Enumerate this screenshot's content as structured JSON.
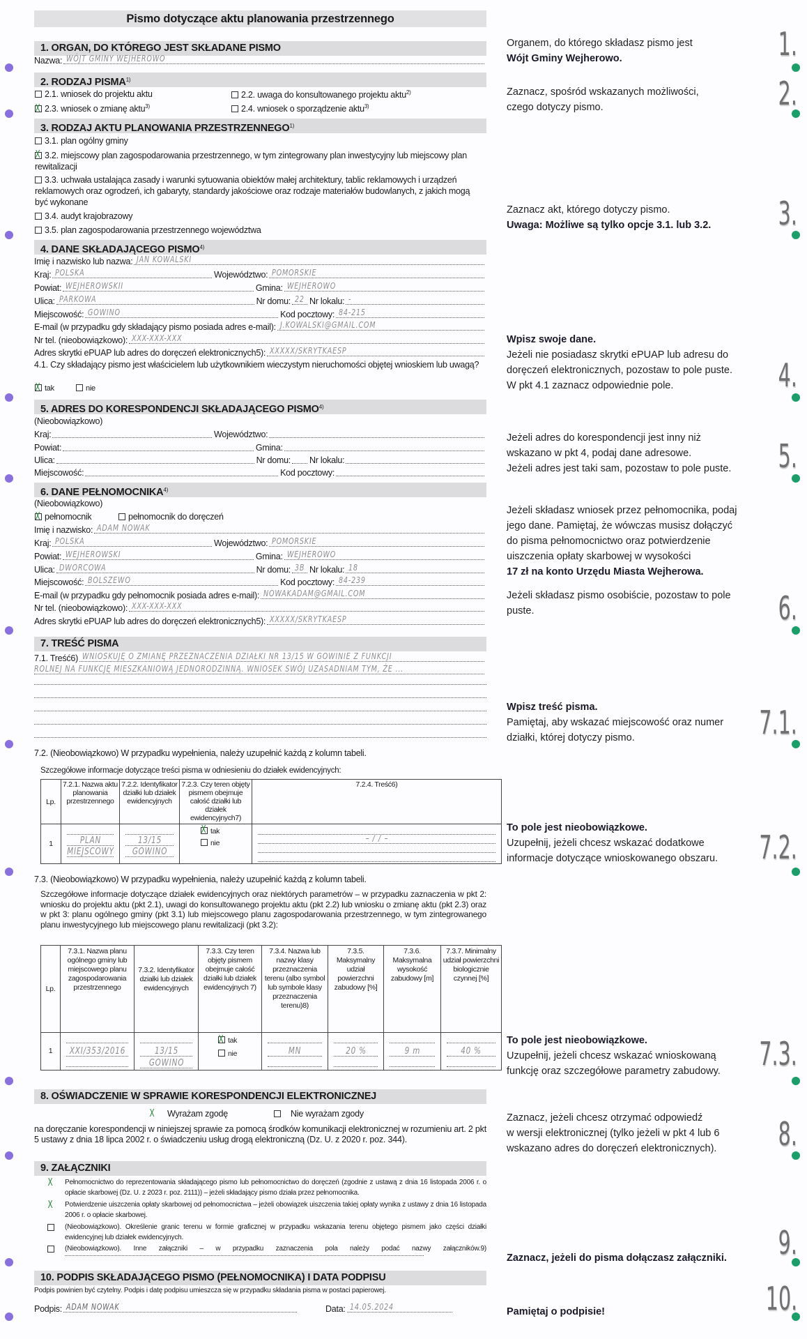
{
  "title": "Pismo dotyczące aktu planowania przestrzennego",
  "colors": {
    "accent_left": "#8a6fe0",
    "accent_right": "#1a9e6a",
    "header_bg": "#dcdbdd",
    "check": "#2e8b3e"
  },
  "sec1": {
    "header": "1. ORGAN, DO KTÓREGO JEST SKŁADANE PISMO",
    "rows": [
      [
        {
          "label": "Nazwa:",
          "value": "WÓJT GMINY WEJHEROWO"
        }
      ]
    ]
  },
  "sec2": {
    "header": "2. RODZAJ PISMA",
    "sup": "1)",
    "options": [
      {
        "label": "2.1. wniosek do projektu aktu",
        "sup": "",
        "checked": "false"
      },
      {
        "label": "2.2. uwaga do konsultowanego projektu aktu",
        "sup": "2)",
        "checked": "false"
      },
      {
        "label": "2.3. wniosek o zmianę aktu",
        "sup": "3)",
        "checked": "true"
      },
      {
        "label": "2.4. wniosek o sporządzenie aktu",
        "sup": "3)",
        "checked": "false"
      }
    ]
  },
  "sec3": {
    "header": "3. RODZAJ AKTU PLANOWANIA PRZESTRZENNEGO",
    "sup": "1)",
    "options": [
      {
        "label": "3.1. plan ogólny gminy",
        "checked": "false"
      },
      {
        "label": "3.2. miejscowy plan zagospodarowania przestrzennego, w tym zintegrowany plan inwestycyjny lub miejscowy plan rewitalizacji",
        "checked": "true"
      },
      {
        "label": "3.3. uchwała ustalająca zasady i warunki sytuowania obiektów małej architektury, tablic reklamowych i urządzeń reklamowych oraz ogrodzeń, ich gabaryty, standardy jakościowe oraz rodzaje materiałów budowlanych, z jakich mogą być wykonane",
        "checked": "false"
      },
      {
        "label": "3.4. audyt krajobrazowy",
        "checked": "false"
      },
      {
        "label": "3.5. plan zagospodarowania przestrzennego województwa",
        "checked": "false"
      }
    ]
  },
  "sec4": {
    "header": "4. DANE SKŁADAJĄCEGO PISMO",
    "sup": "4)",
    "rows": [
      [
        {
          "label": "Imię i nazwisko lub nazwa:",
          "value": "JAN KOWALSKI"
        }
      ],
      [
        {
          "label": "Kraj:",
          "value": "POLSKA"
        },
        {
          "label": "Województwo:",
          "value": "POMORSKIE"
        }
      ],
      [
        {
          "label": "Powiat:",
          "value": "WEJHEROWSKII"
        },
        {
          "label": "Gmina:",
          "value": "WEJHEROWO"
        }
      ],
      [
        {
          "label": "Ulica:",
          "value": "PARKOWA"
        },
        {
          "label": "Nr domu:",
          "value": "22"
        },
        {
          "label": "Nr lokalu:",
          "value": "-"
        }
      ],
      [
        {
          "label": "Miejscowość:",
          "value": "GOWINO"
        },
        {
          "label": "Kod pocztowy:",
          "value": "84-215"
        }
      ],
      [
        {
          "label": "E-mail (w przypadku gdy składający pismo posiada adres e-mail):",
          "value": "J.KOWALSKI@GMAIL.COM"
        }
      ],
      [
        {
          "label": "Nr tel. (nieobowiązkowo):",
          "value": "XXX-XXX-XXX"
        }
      ],
      [
        {
          "label": "Adres skrytki ePUAP lub adres do doręczeń elektronicznych5):",
          "value": "XXXXX/SKRYTKAESP"
        }
      ]
    ],
    "q41": "4.1. Czy składający pismo jest właścicielem lub użytkownikiem wieczystym nieruchomości objętej wnioskiem lub uwagą?",
    "q41_options": [
      {
        "label": "tak",
        "checked": "true"
      },
      {
        "label": "nie",
        "checked": "false"
      }
    ]
  },
  "sec5": {
    "header": "5. ADRES DO KORESPONDENCJI SKŁADAJĄCEGO PISMO",
    "sup": "4)",
    "optional": "(Nieobowiązkowo)",
    "rows": [
      [
        {
          "label": "Kraj:",
          "value": ""
        },
        {
          "label": "Województwo:",
          "value": ""
        }
      ],
      [
        {
          "label": "Powiat:",
          "value": ""
        },
        {
          "label": "Gmina:",
          "value": ""
        }
      ],
      [
        {
          "label": "Ulica:",
          "value": ""
        },
        {
          "label": "Nr domu:",
          "value": ""
        },
        {
          "label": "Nr lokalu:",
          "value": ""
        }
      ],
      [
        {
          "label": "Miejscowość:",
          "value": ""
        },
        {
          "label": "Kod pocztowy:",
          "value": ""
        }
      ]
    ]
  },
  "sec6": {
    "header": "6. DANE PEŁNOMOCNIKA",
    "sup": "4)",
    "optional": "(Nieobowiązkowo)",
    "options": [
      {
        "label": "pełnomocnik",
        "checked": "true"
      },
      {
        "label": "pełnomocnik do doręczeń",
        "checked": "false"
      }
    ],
    "rows": [
      [
        {
          "label": "Imię i nazwisko:",
          "value": "ADAM NOWAK"
        }
      ],
      [
        {
          "label": "Kraj:",
          "value": "POLSKA"
        },
        {
          "label": "Województwo:",
          "value": "POMORSKIE"
        }
      ],
      [
        {
          "label": "Powiat:",
          "value": "WEJHEROWSKI"
        },
        {
          "label": "Gmina:",
          "value": "WEJHEROWO"
        }
      ],
      [
        {
          "label": "Ulica:",
          "value": "DWORCOWA"
        },
        {
          "label": "Nr domu:",
          "value": "3B"
        },
        {
          "label": "Nr lokalu:",
          "value": "18"
        }
      ],
      [
        {
          "label": "Miejscowość:",
          "value": "BOLSZEWO"
        },
        {
          "label": "Kod pocztowy:",
          "value": "84-239"
        }
      ],
      [
        {
          "label": "E-mail (w przypadku gdy pełnomocnik posiada adres e-mail):",
          "value": "NOWAKADAM@GMAIL.COM"
        }
      ],
      [
        {
          "label": "Nr tel. (nieobowiązkowo):",
          "value": "XXX-XXX-XXX"
        }
      ],
      [
        {
          "label": "Adres skrytki ePUAP lub adres do doręczeń elektronicznych5):",
          "value": "XXXXX/SKRYTKAESP"
        }
      ]
    ]
  },
  "sec7": {
    "header": "7. TREŚĆ PISMA",
    "t71_label": "7.1. Treść6)",
    "t71_lines": [
      "WNIOSKUJĘ O ZMIANĘ PRZEZNACZENIA DZIAŁKI NR 13/15 W GOWINIE Z FUNKCJI",
      "ROLNEJ NA FUNKCJĘ MIESZKANIOWĄ JEDNORODZINNĄ. WNIOSEK SWÓJ UZASADNIAM TYM, ŻE ..."
    ],
    "t72_intro": "7.2. (Nieobowiązkowo) W przypadku wypełnienia, należy uzupełnić każdą z kolumn tabeli.",
    "t72_caption": "Szczegółowe informacje dotyczące treści pisma w odniesieniu do działek ewidencyjnych:",
    "t72_headers": [
      "Lp.",
      "7.2.1. Nazwa aktu planowania przestrzennego",
      "7.2.2. Identyfikator działki lub działek ewidencyjnych",
      "7.2.3. Czy teren objęty pismem obejmuje całość działki lub działek ewidencyjnych7)",
      "7.2.4. Treść6)"
    ],
    "t72_row": {
      "lp": "1",
      "name": [
        "PLAN",
        "MIEJSCOWY"
      ],
      "id": [
        "13/15",
        "GOWINO"
      ],
      "whole": [
        {
          "label": "tak",
          "checked": "true"
        },
        {
          "label": "nie",
          "checked": "false"
        }
      ],
      "content": "– / / –"
    },
    "t73_intro": "7.3. (Nieobowiązkowo) W przypadku wypełnienia, należy uzupełnić każdą z kolumn tabeli.",
    "t73_caption": "Szczegółowe informacje dotyczące działek ewidencyjnych oraz niektórych parametrów – w przypadku zaznaczenia w pkt 2: wniosku do projektu aktu (pkt 2.1), uwagi do konsultowanego projektu aktu (pkt 2.2) lub wniosku o zmianę aktu (pkt 2.3) oraz w pkt 3: planu ogólnego gminy (pkt 3.1) lub miejscowego planu zagospodarowania przestrzennego, w tym zintegrowanego planu inwestycyjnego lub miejscowego planu rewitalizacji (pkt 3.2):",
    "t73_headers": [
      "Lp.",
      "7.3.1. Nazwa planu ogólnego gminy lub miejscowego planu zagospodarowania przestrzennego",
      "7.3.2. Identyfikator działki lub działek ewidencyjnych",
      "7.3.3. Czy teren objęty pismem obejmuje całość działki lub działek ewidencyjnych 7)",
      "7.3.4. Nazwa lub nazwy klasy przeznaczenia terenu (albo symbol lub symbole klasy przeznaczenia terenu)8)",
      "7.3.5. Maksymalny udział powierzchni zabudowy [%]",
      "7.3.6. Maksymalna wysokość zabudowy [m]",
      "7.3.7. Minimalny udział powierzchni biologicznie czynnej [%]"
    ],
    "t73_row": {
      "lp": "1",
      "name": "XXI/353/2016",
      "id": [
        "13/15",
        "GOWINO"
      ],
      "whole": [
        {
          "label": "tak",
          "checked": "true"
        },
        {
          "label": "nie",
          "checked": "false"
        }
      ],
      "class": "MN",
      "max_cover": "20 %",
      "max_height": "9 m",
      "min_bio": "40 %"
    }
  },
  "sec8": {
    "header": "8. OŚWIADCZENIE W SPRAWIE KORESPONDENCJI ELEKTRONICZNEJ",
    "options": [
      {
        "label": "Wyrażam zgodę",
        "checked": "true"
      },
      {
        "label": "Nie wyrażam zgody",
        "checked": "false"
      }
    ],
    "text": "na doręczanie korespondencji w niniejszej sprawie za pomocą środków komunikacji elektronicznej w rozumieniu art. 2 pkt 5 ustawy z dnia 18 lipca 2002 r. o świadczeniu usług drogą elektroniczną (Dz. U. z 2020 r. poz. 344)."
  },
  "sec9": {
    "header": "9. ZAŁĄCZNIKI",
    "items": [
      {
        "label": "Pełnomocnictwo do reprezentowania składającego pismo lub pełnomocnictwo do doręczeń (zgodnie z ustawą z dnia 16 listopada 2006 r. o opłacie skarbowej (Dz. U. z 2023 r. poz. 2111)) – jeżeli składający pismo działa przez pełnomocnika.",
        "checked": "true"
      },
      {
        "label": "Potwierdzenie uiszczenia opłaty skarbowej od pełnomocnictwa – jeżeli obowiązek uiszczenia takiej opłaty wynika z ustawy z dnia 16 listopada 2006 r. o opłacie skarbowej.",
        "checked": "true"
      },
      {
        "label": "(Nieobowiązkowo). Określenie granic terenu w formie graficznej w przypadku wskazania terenu objętego pismem jako części działki ewidencyjnej lub działek ewidencyjnych.",
        "checked": "false"
      },
      {
        "label": "(Nieobowiązkowo). Inne załączniki – w przypadku zaznaczenia pola należy podać nazwy załączników.9)",
        "checked": "false"
      }
    ]
  },
  "sec10": {
    "header": "10. PODPIS SKŁADAJĄCEGO PISMO (PEŁNOMOCNIKA) I DATA PODPISU",
    "note": "Podpis powinien być czytelny. Podpis i datę podpisu umieszcza się w przypadku składania pisma w postaci papierowej.",
    "signature_label": "Podpis:",
    "signature": "ADAM NOWAK",
    "date_label": "Data:",
    "date": "14.05.2024"
  },
  "notes": [
    {
      "num": "1.",
      "lines": [
        {
          "text": "Organem, do którego składasz pismo jest",
          "bold": false
        },
        {
          "text": "Wójt Gminy Wejherowo.",
          "bold": true
        }
      ]
    },
    {
      "num": "2.",
      "lines": [
        {
          "text": "Zaznacz, spośród wskazanych możliwości,",
          "bold": false
        },
        {
          "text": "czego dotyczy pismo.",
          "bold": false
        }
      ]
    },
    {
      "num": "3.",
      "lines": [
        {
          "text": "Zaznacz akt, którego dotyczy pismo.",
          "bold": false
        },
        {
          "text": "Uwaga: Możliwe są tylko opcje 3.1. lub 3.2.",
          "bold": true
        }
      ]
    },
    {
      "num": "4.",
      "lines": [
        {
          "text": "Wpisz swoje dane.",
          "bold": true
        },
        {
          "text": "Jeżeli nie posiadasz skrytki ePUAP lub adresu do",
          "bold": false
        },
        {
          "text": "doręczeń elektronicznych, pozostaw to pole puste.",
          "bold": false
        },
        {
          "text": "W pkt 4.1 zaznacz odpowiednie pole.",
          "bold": false
        }
      ]
    },
    {
      "num": "5.",
      "lines": [
        {
          "text": "Jeżeli adres do korespondencji jest inny niż",
          "bold": false
        },
        {
          "text": "wskazano w pkt 4, podaj dane adresowe.",
          "bold": false
        },
        {
          "text": "Jeżeli adres jest taki sam, pozostaw to pole puste.",
          "bold": false
        }
      ]
    },
    {
      "num": "6.",
      "lines": [
        {
          "text": "Jeżeli składasz wniosek przez pełnomocnika, podaj",
          "bold": false
        },
        {
          "text": "jego dane. Pamiętaj, że wówczas musisz dołączyć",
          "bold": false
        },
        {
          "text": "do pisma pełnomocnictwo oraz potwierdzenie",
          "bold": false
        },
        {
          "text": "uiszczenia opłaty skarbowej w wysokości",
          "bold": false
        },
        {
          "text": "17 zł na konto Urzędu Miasta Wejherowa.",
          "bold": true
        }
      ],
      "extra": [
        "Jeżeli składasz pismo osobiście, pozostaw to pole",
        "puste."
      ]
    },
    {
      "num": "7.1.",
      "lines": [
        {
          "text": "Wpisz treść pisma.",
          "bold": true
        },
        {
          "text": "Pamiętaj, aby wskazać miejscowość oraz numer",
          "bold": false
        },
        {
          "text": "działki, której dotyczy pismo.",
          "bold": false
        }
      ]
    },
    {
      "num": "7.2.",
      "lines": [
        {
          "text": "To pole jest nieobowiązkowe.",
          "bold": true
        },
        {
          "text": "Uzupełnij, jeżeli chcesz wskazać dodatkowe",
          "bold": false
        },
        {
          "text": "informacje dotyczące wnioskowanego obszaru.",
          "bold": false
        }
      ]
    },
    {
      "num": "7.3.",
      "lines": [
        {
          "text": "To pole jest nieobowiązkowe.",
          "bold": true
        },
        {
          "text": "Uzupełnij, jeżeli chcesz wskazać wnioskowaną",
          "bold": false
        },
        {
          "text": "funkcję oraz szczegółowe parametry zabudowy.",
          "bold": false
        }
      ]
    },
    {
      "num": "8.",
      "lines": [
        {
          "text": "Zaznacz, jeżeli chcesz otrzymać odpowiedź",
          "bold": false
        },
        {
          "text": "w wersji elektronicznej (tylko jeżeli w pkt 4 lub 6",
          "bold": false
        },
        {
          "text": "wskazano adres do doręczeń elektronicznych).",
          "bold": false
        }
      ]
    },
    {
      "num": "9.",
      "lines": [
        {
          "text": "Zaznacz, jeżeli do pisma dołączasz załączniki.",
          "bold": true
        }
      ]
    },
    {
      "num": "10.",
      "lines": [
        {
          "text": "Pamiętaj o podpisie!",
          "bold": true
        }
      ]
    }
  ]
}
